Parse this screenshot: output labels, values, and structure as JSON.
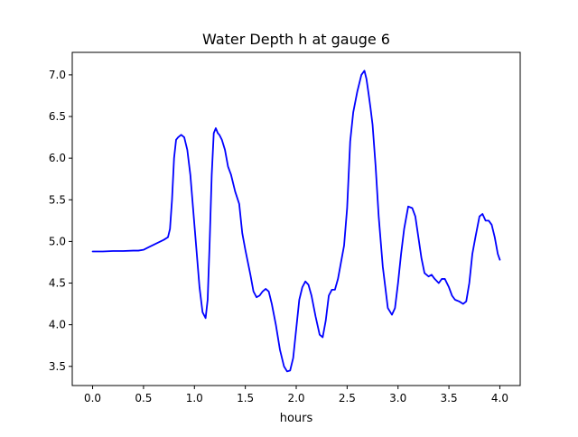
{
  "chart_data": {
    "type": "line",
    "title": "Water Depth h at gauge 6",
    "xlabel": "hours",
    "ylabel": "",
    "xlim": [
      -0.2,
      4.2
    ],
    "ylim": [
      3.27,
      7.27
    ],
    "xticks": [
      0.0,
      0.5,
      1.0,
      1.5,
      2.0,
      2.5,
      3.0,
      3.5,
      4.0
    ],
    "xtick_labels": [
      "0.0",
      "0.5",
      "1.0",
      "1.5",
      "2.0",
      "2.5",
      "3.0",
      "3.5",
      "4.0"
    ],
    "yticks": [
      3.5,
      4.0,
      4.5,
      5.0,
      5.5,
      6.0,
      6.5,
      7.0
    ],
    "ytick_labels": [
      "3.5",
      "4.0",
      "4.5",
      "5.0",
      "5.5",
      "6.0",
      "6.5",
      "7.0"
    ],
    "grid": false,
    "legend": "none",
    "series": [
      {
        "color": "#0000ff",
        "x": [
          0.0,
          0.1,
          0.2,
          0.3,
          0.4,
          0.45,
          0.5,
          0.55,
          0.6,
          0.65,
          0.7,
          0.74,
          0.76,
          0.78,
          0.8,
          0.82,
          0.84,
          0.87,
          0.9,
          0.93,
          0.96,
          1.0,
          1.05,
          1.08,
          1.11,
          1.13,
          1.15,
          1.17,
          1.19,
          1.21,
          1.23,
          1.245,
          1.27,
          1.3,
          1.33,
          1.36,
          1.4,
          1.44,
          1.47,
          1.5,
          1.55,
          1.58,
          1.61,
          1.64,
          1.67,
          1.7,
          1.73,
          1.76,
          1.8,
          1.84,
          1.88,
          1.91,
          1.94,
          1.97,
          2.0,
          2.03,
          2.06,
          2.09,
          2.12,
          2.15,
          2.19,
          2.23,
          2.26,
          2.29,
          2.32,
          2.35,
          2.38,
          2.41,
          2.44,
          2.47,
          2.5,
          2.53,
          2.56,
          2.6,
          2.64,
          2.67,
          2.69,
          2.71,
          2.73,
          2.75,
          2.78,
          2.81,
          2.85,
          2.9,
          2.94,
          2.97,
          3.0,
          3.03,
          3.06,
          3.1,
          3.14,
          3.17,
          3.2,
          3.23,
          3.26,
          3.3,
          3.33,
          3.36,
          3.4,
          3.43,
          3.46,
          3.5,
          3.53,
          3.56,
          3.6,
          3.64,
          3.67,
          3.7,
          3.73,
          3.76,
          3.8,
          3.83,
          3.86,
          3.89,
          3.92,
          3.95,
          3.98,
          4.0
        ],
        "y": [
          4.88,
          4.88,
          4.885,
          4.885,
          4.89,
          4.89,
          4.9,
          4.93,
          4.96,
          4.99,
          5.02,
          5.05,
          5.15,
          5.5,
          6.0,
          6.22,
          6.25,
          6.28,
          6.25,
          6.1,
          5.8,
          5.2,
          4.45,
          4.15,
          4.08,
          4.3,
          5.0,
          5.8,
          6.3,
          6.36,
          6.3,
          6.28,
          6.22,
          6.1,
          5.9,
          5.8,
          5.6,
          5.45,
          5.1,
          4.9,
          4.6,
          4.4,
          4.33,
          4.35,
          4.4,
          4.43,
          4.4,
          4.25,
          4.0,
          3.7,
          3.5,
          3.44,
          3.45,
          3.6,
          3.95,
          4.3,
          4.45,
          4.52,
          4.48,
          4.35,
          4.1,
          3.88,
          3.85,
          4.05,
          4.35,
          4.42,
          4.42,
          4.55,
          4.75,
          4.95,
          5.4,
          6.2,
          6.55,
          6.8,
          7.0,
          7.05,
          6.95,
          6.78,
          6.6,
          6.4,
          5.9,
          5.3,
          4.7,
          4.2,
          4.12,
          4.2,
          4.5,
          4.85,
          5.15,
          5.42,
          5.4,
          5.3,
          5.05,
          4.8,
          4.62,
          4.58,
          4.6,
          4.55,
          4.5,
          4.55,
          4.55,
          4.45,
          4.35,
          4.3,
          4.28,
          4.25,
          4.28,
          4.5,
          4.85,
          5.05,
          5.3,
          5.33,
          5.25,
          5.25,
          5.2,
          5.05,
          4.85,
          4.78
        ]
      }
    ]
  }
}
